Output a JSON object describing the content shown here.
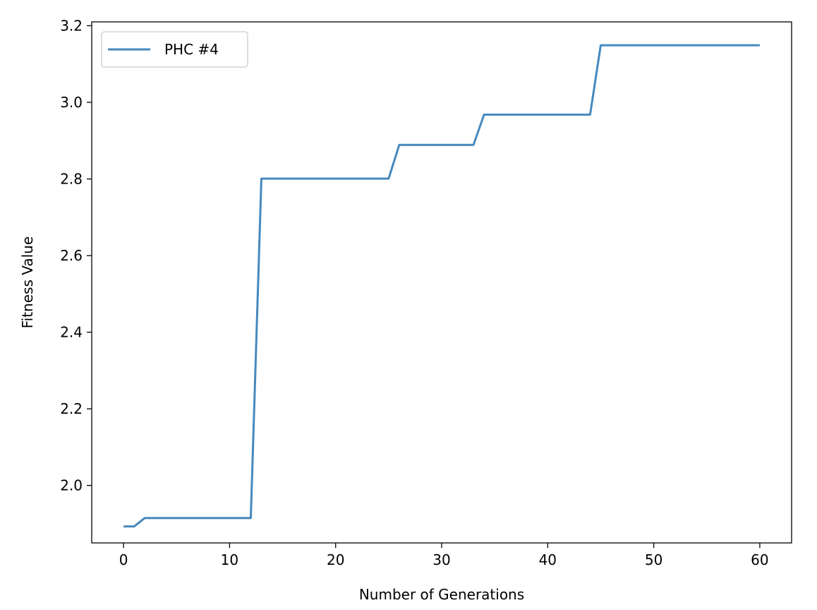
{
  "chart_data": {
    "type": "line",
    "title": "",
    "xlabel": "Number of Generations",
    "ylabel": "Fitness Value",
    "xlim": [
      -3,
      63
    ],
    "ylim": [
      1.85,
      3.21
    ],
    "xticks": [
      "0",
      "10",
      "20",
      "30",
      "40",
      "50",
      "60"
    ],
    "yticks": [
      "2.0",
      "2.2",
      "2.4",
      "2.6",
      "2.8",
      "3.0",
      "3.2"
    ],
    "grid": false,
    "legend_position": "top-left",
    "series": [
      {
        "name": "PHC #4",
        "color": "#4689bd",
        "x": [
          0,
          1,
          2,
          12,
          13,
          25,
          26,
          33,
          34,
          44,
          45,
          60
        ],
        "y": [
          1.893,
          1.893,
          1.915,
          1.915,
          2.801,
          2.801,
          2.889,
          2.889,
          2.968,
          2.968,
          3.149,
          3.149
        ]
      }
    ]
  }
}
